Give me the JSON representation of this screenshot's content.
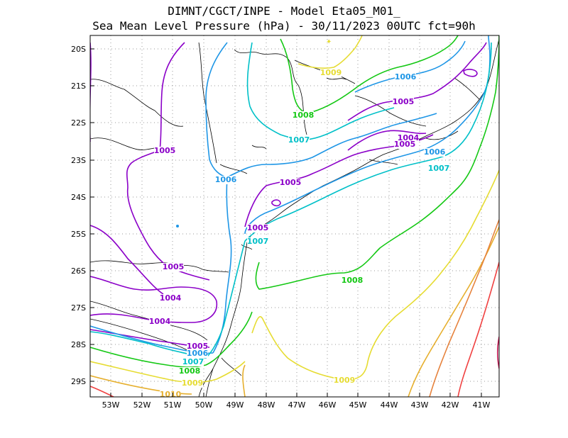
{
  "title_line1": "DIMNT/CGCT/INPE -  Model Eta05_M01_",
  "title_line2": "Sea Mean Level Pressure (hPa) - 30/11/2023 00UTC fct=90h",
  "lat_labels": [
    "20S",
    "21S",
    "22S",
    "23S",
    "24S",
    "25S",
    "26S",
    "27S",
    "28S",
    "29S"
  ],
  "lon_labels": [
    "53W",
    "52W",
    "51W",
    "50W",
    "49W",
    "48W",
    "47W",
    "46W",
    "45W",
    "44W",
    "43W",
    "42W",
    "41W"
  ],
  "contour_colors": {
    "1004": "#8b00c8",
    "1005": "#8b00c8",
    "1006": "#1e96e6",
    "1007": "#00c0c8",
    "1008": "#14c814",
    "1009": "#e6dc32",
    "1010": "#e6af2d",
    "1011": "#e6823c",
    "1012": "#f04040"
  },
  "contour_labels": [
    {
      "text": "1009",
      "level": "1009"
    },
    {
      "text": "1006",
      "level": "1006"
    },
    {
      "text": "1005",
      "level": "1005"
    },
    {
      "text": "1008",
      "level": "1008"
    },
    {
      "text": "1004",
      "level": "1004"
    },
    {
      "text": "1005",
      "level": "1005"
    },
    {
      "text": "1007",
      "level": "1007"
    },
    {
      "text": "1005",
      "level": "1005"
    },
    {
      "text": "1006",
      "level": "1006"
    },
    {
      "text": "1007",
      "level": "1007"
    },
    {
      "text": "1006",
      "level": "1006"
    },
    {
      "text": "1005",
      "level": "1005"
    },
    {
      "text": "1005",
      "level": "1005"
    },
    {
      "text": "1007",
      "level": "1007"
    },
    {
      "text": "1005",
      "level": "1005"
    },
    {
      "text": "1008",
      "level": "1008"
    },
    {
      "text": "1004",
      "level": "1004"
    },
    {
      "text": "1004",
      "level": "1004"
    },
    {
      "text": "1005",
      "level": "1005"
    },
    {
      "text": "1006",
      "level": "1006"
    },
    {
      "text": "1007",
      "level": "1007"
    },
    {
      "text": "1008",
      "level": "1008"
    },
    {
      "text": "1009",
      "level": "1009"
    },
    {
      "text": "1009",
      "level": "1009"
    },
    {
      "text": "1010",
      "level": "1010"
    }
  ]
}
